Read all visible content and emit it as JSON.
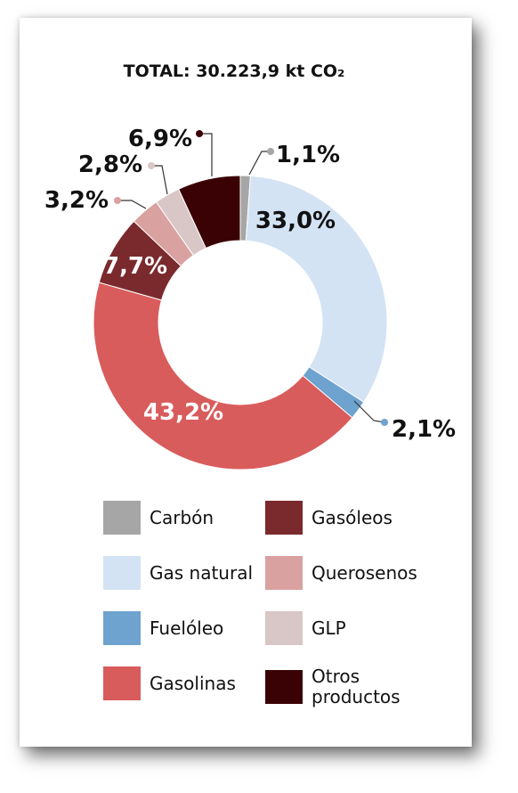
{
  "chart_data": {
    "type": "pie",
    "variant": "donut",
    "title": "TOTAL: 30.223,9 kt CO₂",
    "categories": [
      "Carbón",
      "Gas natural",
      "Fuelóleo",
      "Gasolinas",
      "Gasóleos",
      "Querosenos",
      "GLP",
      "Otros productos"
    ],
    "values": [
      1.1,
      33.0,
      2.1,
      43.2,
      7.7,
      3.2,
      2.8,
      6.9
    ],
    "labels": [
      "1,1%",
      "33,0%",
      "2,1%",
      "43,2%",
      "7,7%",
      "3,2%",
      "2,8%",
      "6,9%"
    ],
    "colors": [
      "#a6a6a6",
      "#d3e3f4",
      "#6ea2cf",
      "#d95c5c",
      "#7a2a2d",
      "#d9a1a0",
      "#d9c6c6",
      "#3b0206"
    ],
    "legend_position": "bottom"
  }
}
